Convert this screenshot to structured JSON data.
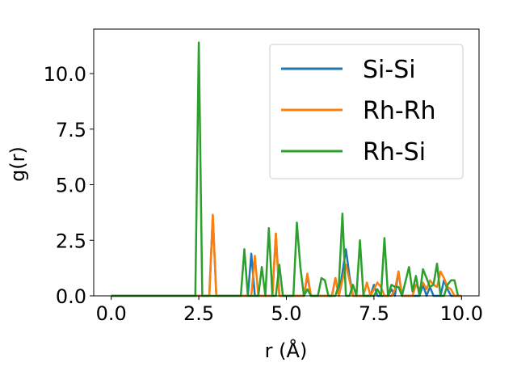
{
  "chart_data": {
    "type": "line",
    "title": "",
    "xlabel": "r (Å)",
    "ylabel": "g(r)",
    "xlim": [
      -0.5,
      10.5
    ],
    "ylim": [
      0,
      12
    ],
    "x_ticks": [
      "0.0",
      "2.5",
      "5.0",
      "7.5",
      "10.0"
    ],
    "x_tick_values": [
      0,
      2.5,
      5,
      7.5,
      10
    ],
    "y_ticks": [
      "0.0",
      "2.5",
      "5.0",
      "7.5",
      "10.0"
    ],
    "y_tick_values": [
      0,
      2.5,
      5,
      7.5,
      10
    ],
    "grid": false,
    "legend_position": "top-right",
    "series": [
      {
        "name": "Si-Si",
        "color": "#1f77b4",
        "points": [
          [
            0,
            0
          ],
          [
            2.8,
            0
          ],
          [
            2.9,
            3.6
          ],
          [
            3.0,
            0
          ],
          [
            3.9,
            0
          ],
          [
            4.0,
            1.9
          ],
          [
            4.1,
            0
          ],
          [
            4.6,
            0
          ],
          [
            4.7,
            2.8
          ],
          [
            4.8,
            0
          ],
          [
            5.5,
            0
          ],
          [
            5.6,
            0.9
          ],
          [
            5.7,
            0
          ],
          [
            6.3,
            0
          ],
          [
            6.4,
            0.8
          ],
          [
            6.5,
            0
          ],
          [
            6.7,
            2.1
          ],
          [
            6.8,
            0.9
          ],
          [
            6.9,
            0
          ],
          [
            7.4,
            0
          ],
          [
            7.5,
            0.5
          ],
          [
            7.6,
            0
          ],
          [
            7.9,
            0
          ],
          [
            8.0,
            0.3
          ],
          [
            8.1,
            0
          ],
          [
            8.2,
            1.1
          ],
          [
            8.3,
            0
          ],
          [
            8.8,
            0
          ],
          [
            8.9,
            0.5
          ],
          [
            9.0,
            0
          ],
          [
            9.1,
            0.4
          ],
          [
            9.2,
            0
          ],
          [
            9.4,
            0
          ],
          [
            9.5,
            0.7
          ],
          [
            9.6,
            0.3
          ],
          [
            9.7,
            0
          ],
          [
            10.0,
            0
          ]
        ]
      },
      {
        "name": "Rh-Rh",
        "color": "#ff7f0e",
        "points": [
          [
            0,
            0
          ],
          [
            2.8,
            0
          ],
          [
            2.9,
            3.65
          ],
          [
            3.0,
            0
          ],
          [
            3.9,
            0
          ],
          [
            4.0,
            0
          ],
          [
            4.1,
            1.8
          ],
          [
            4.2,
            0
          ],
          [
            4.6,
            0
          ],
          [
            4.7,
            2.8
          ],
          [
            4.8,
            0
          ],
          [
            5.5,
            0
          ],
          [
            5.6,
            1.0
          ],
          [
            5.7,
            0
          ],
          [
            6.3,
            0
          ],
          [
            6.4,
            0.8
          ],
          [
            6.5,
            0
          ],
          [
            6.6,
            0.7
          ],
          [
            6.7,
            1.4
          ],
          [
            6.8,
            0.7
          ],
          [
            6.9,
            0
          ],
          [
            7.2,
            0
          ],
          [
            7.3,
            0.6
          ],
          [
            7.4,
            0
          ],
          [
            7.6,
            0.6
          ],
          [
            7.7,
            0.4
          ],
          [
            7.8,
            0
          ],
          [
            8.0,
            0
          ],
          [
            8.1,
            0.3
          ],
          [
            8.2,
            1.1
          ],
          [
            8.3,
            0
          ],
          [
            8.6,
            0
          ],
          [
            8.7,
            0.5
          ],
          [
            8.8,
            0.3
          ],
          [
            8.9,
            0.6
          ],
          [
            9.0,
            0.3
          ],
          [
            9.1,
            0.7
          ],
          [
            9.2,
            0.5
          ],
          [
            9.3,
            0.4
          ],
          [
            9.4,
            1.1
          ],
          [
            9.5,
            0.8
          ],
          [
            9.6,
            0.4
          ],
          [
            9.7,
            0.3
          ],
          [
            9.8,
            0
          ],
          [
            10.0,
            0
          ]
        ]
      },
      {
        "name": "Rh-Si",
        "color": "#2ca02c",
        "points": [
          [
            0,
            0
          ],
          [
            2.4,
            0
          ],
          [
            2.5,
            11.4
          ],
          [
            2.6,
            0
          ],
          [
            3.7,
            0
          ],
          [
            3.8,
            2.1
          ],
          [
            3.9,
            0
          ],
          [
            4.2,
            0
          ],
          [
            4.3,
            1.3
          ],
          [
            4.4,
            0
          ],
          [
            4.5,
            3.05
          ],
          [
            4.6,
            0
          ],
          [
            4.7,
            0
          ],
          [
            4.8,
            1.4
          ],
          [
            4.9,
            0
          ],
          [
            5.2,
            0
          ],
          [
            5.3,
            3.3
          ],
          [
            5.4,
            1.3
          ],
          [
            5.5,
            0
          ],
          [
            5.6,
            0.3
          ],
          [
            5.7,
            0
          ],
          [
            5.9,
            0
          ],
          [
            6.0,
            0.8
          ],
          [
            6.1,
            0.7
          ],
          [
            6.2,
            0
          ],
          [
            6.4,
            0
          ],
          [
            6.5,
            0.5
          ],
          [
            6.6,
            3.7
          ],
          [
            6.7,
            0
          ],
          [
            6.8,
            0
          ],
          [
            6.9,
            0.5
          ],
          [
            7.0,
            0
          ],
          [
            7.1,
            2.5
          ],
          [
            7.2,
            0
          ],
          [
            7.5,
            0
          ],
          [
            7.6,
            0.3
          ],
          [
            7.7,
            0
          ],
          [
            7.8,
            2.6
          ],
          [
            7.9,
            0
          ],
          [
            8.0,
            0.5
          ],
          [
            8.1,
            0.4
          ],
          [
            8.2,
            0.4
          ],
          [
            8.3,
            0
          ],
          [
            8.5,
            1.3
          ],
          [
            8.6,
            0.2
          ],
          [
            8.7,
            0.9
          ],
          [
            8.8,
            0
          ],
          [
            8.9,
            1.2
          ],
          [
            9.0,
            0.8
          ],
          [
            9.1,
            0.4
          ],
          [
            9.2,
            0.5
          ],
          [
            9.3,
            1.45
          ],
          [
            9.4,
            0
          ],
          [
            9.5,
            0
          ],
          [
            9.6,
            0.5
          ],
          [
            9.7,
            0.7
          ],
          [
            9.8,
            0.7
          ],
          [
            9.9,
            0
          ]
        ]
      }
    ]
  }
}
